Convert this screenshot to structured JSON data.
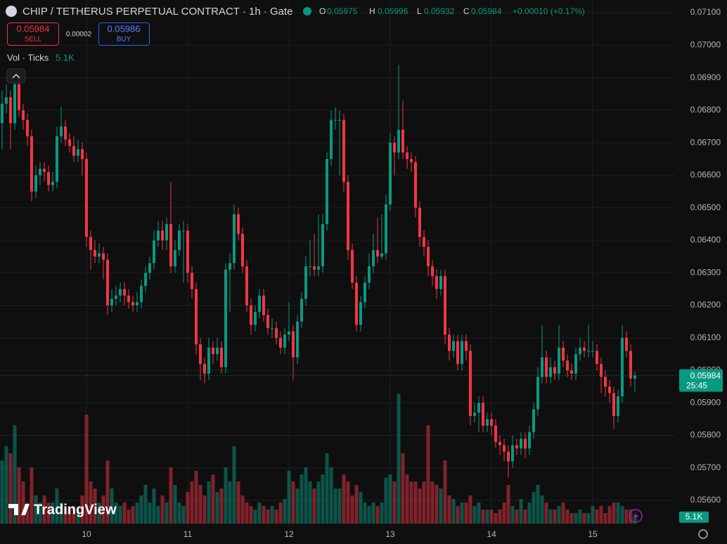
{
  "chart_data": {
    "type": "candlestick",
    "title": "CHIP / TETHERUS PERPETUAL CONTRACT · 1h · Gate",
    "ohlc_letters": [
      "O",
      "H",
      "L",
      "C"
    ],
    "change_label": "+0.00010 (+0.17%)",
    "sell_price": 0.05984,
    "sell_label": "SELL",
    "spread": 2e-05,
    "buy_price": 0.05986,
    "buy_label": "BUY",
    "volume_title": "Vol · Ticks",
    "volume_last_label": "5.1K",
    "countdown": "25:45",
    "logo": "TradingView",
    "up_color": "#089981",
    "down_color": "#f23645",
    "grid": true,
    "categories": [
      null,
      null,
      null,
      null,
      null,
      null,
      null,
      null,
      null,
      null,
      null,
      null,
      null,
      null,
      null,
      null,
      null,
      null,
      null,
      null,
      "10",
      null,
      null,
      null,
      null,
      null,
      null,
      null,
      null,
      null,
      null,
      null,
      null,
      null,
      null,
      null,
      null,
      null,
      null,
      null,
      null,
      null,
      null,
      null,
      "11",
      null,
      null,
      null,
      null,
      null,
      null,
      null,
      null,
      null,
      null,
      null,
      null,
      null,
      null,
      null,
      null,
      null,
      null,
      null,
      null,
      null,
      null,
      null,
      "12",
      null,
      null,
      null,
      null,
      null,
      null,
      null,
      null,
      null,
      null,
      null,
      null,
      null,
      null,
      null,
      null,
      null,
      null,
      null,
      null,
      null,
      null,
      null,
      "13",
      null,
      null,
      null,
      null,
      null,
      null,
      null,
      null,
      null,
      null,
      null,
      null,
      null,
      null,
      null,
      null,
      null,
      null,
      null,
      null,
      null,
      null,
      null,
      "14",
      null,
      null,
      null,
      null,
      null,
      null,
      null,
      null,
      null,
      null,
      null,
      null,
      null,
      null,
      null,
      null,
      null,
      null,
      null,
      null,
      null,
      null,
      null,
      "15",
      null,
      null,
      null,
      null,
      null,
      null,
      null,
      null,
      null,
      null
    ],
    "open": [
      0.0676,
      0.0682,
      0.0684,
      0.0676,
      0.0688,
      0.068,
      0.0677,
      0.0672,
      0.0655,
      0.066,
      0.0662,
      0.0661,
      0.0657,
      0.0658,
      0.0672,
      0.0675,
      0.0671,
      0.0669,
      0.0666,
      0.0668,
      0.0665,
      0.0641,
      0.0637,
      0.0635,
      0.0636,
      0.0634,
      0.062,
      0.0622,
      0.0623,
      0.0625,
      0.0623,
      0.0621,
      0.062,
      0.0621,
      0.0626,
      0.063,
      0.0633,
      0.064,
      0.0643,
      0.064,
      0.0645,
      0.0632,
      0.0637,
      0.0643,
      0.0643,
      0.063,
      0.0625,
      0.0608,
      0.0602,
      0.0599,
      0.0607,
      0.0605,
      0.0607,
      0.0601,
      0.0631,
      0.0633,
      0.0648,
      0.0642,
      0.0632,
      0.062,
      0.0614,
      0.0618,
      0.0623,
      0.0617,
      0.0613,
      0.0613,
      0.061,
      0.0607,
      0.0611,
      0.0612,
      0.0604,
      0.0615,
      0.0622,
      0.0632,
      0.0632,
      0.0631,
      0.0632,
      0.0645,
      0.0665,
      0.0677,
      0.0677,
      0.0677,
      0.0658,
      0.0637,
      0.0627,
      0.0614,
      0.0621,
      0.0627,
      0.0632,
      0.0637,
      0.0635,
      0.0636,
      0.0651,
      0.067,
      0.0667,
      0.0674,
      0.0667,
      0.0665,
      0.0664,
      0.065,
      0.0641,
      0.0638,
      0.0632,
      0.0629,
      0.0625,
      0.0629,
      0.0611,
      0.0606,
      0.0609,
      0.0602,
      0.0609,
      0.0606,
      0.0586,
      0.0587,
      0.059,
      0.0583,
      0.0585,
      0.0583,
      0.0578,
      0.0577,
      0.0575,
      0.0572,
      0.0577,
      0.0576,
      0.0579,
      0.0576,
      0.0581,
      0.0588,
      0.0598,
      0.0604,
      0.0598,
      0.0601,
      0.0599,
      0.0607,
      0.0603,
      0.06,
      0.0599,
      0.0605,
      0.0607,
      0.0606,
      0.0606,
      0.0606,
      0.0602,
      0.0598,
      0.0595,
      0.0593,
      0.0586,
      0.0592,
      0.061,
      0.0606,
      0.05975
    ],
    "high": [
      0.0686,
      0.0688,
      0.0686,
      0.0692,
      0.069,
      0.0682,
      0.0679,
      0.0674,
      0.0663,
      0.0664,
      0.0664,
      0.0663,
      0.0661,
      0.0675,
      0.0681,
      0.0677,
      0.0673,
      0.0672,
      0.0671,
      0.067,
      0.0667,
      0.0643,
      0.064,
      0.0639,
      0.0638,
      0.0636,
      0.0625,
      0.0626,
      0.0627,
      0.0627,
      0.0625,
      0.0623,
      0.0624,
      0.0628,
      0.0632,
      0.0635,
      0.0643,
      0.0646,
      0.0646,
      0.0647,
      0.0658,
      0.064,
      0.0645,
      0.0646,
      0.0645,
      0.0632,
      0.0627,
      0.061,
      0.0604,
      0.061,
      0.0609,
      0.061,
      0.0609,
      0.0633,
      0.0636,
      0.0651,
      0.065,
      0.0644,
      0.0634,
      0.0622,
      0.062,
      0.0625,
      0.0625,
      0.0619,
      0.0616,
      0.0615,
      0.0612,
      0.0613,
      0.0621,
      0.0614,
      0.0617,
      0.0624,
      0.0635,
      0.064,
      0.0642,
      0.0648,
      0.0648,
      0.0667,
      0.068,
      0.0681,
      0.068,
      0.0679,
      0.066,
      0.0639,
      0.0629,
      0.0623,
      0.0629,
      0.0636,
      0.0642,
      0.0647,
      0.0648,
      0.0654,
      0.0673,
      0.0672,
      0.0694,
      0.0683,
      0.0669,
      0.0667,
      0.0666,
      0.0652,
      0.0643,
      0.064,
      0.0634,
      0.0631,
      0.0631,
      0.0631,
      0.0613,
      0.0611,
      0.0611,
      0.0611,
      0.0611,
      0.0608,
      0.059,
      0.0592,
      0.0592,
      0.0587,
      0.0587,
      0.0585,
      0.058,
      0.0579,
      0.0577,
      0.058,
      0.0579,
      0.0581,
      0.0581,
      0.0583,
      0.059,
      0.0601,
      0.0614,
      0.0606,
      0.0604,
      0.0603,
      0.0614,
      0.0609,
      0.0605,
      0.0602,
      0.0607,
      0.061,
      0.0609,
      0.0614,
      0.0609,
      0.0608,
      0.0604,
      0.06,
      0.0597,
      0.0595,
      0.0594,
      0.0614,
      0.0612,
      0.0608,
      0.05996
    ],
    "low": [
      0.0668,
      0.0679,
      0.0668,
      0.0674,
      0.0678,
      0.0674,
      0.0669,
      0.0652,
      0.0653,
      0.0657,
      0.0658,
      0.0655,
      0.0655,
      0.0656,
      0.067,
      0.0669,
      0.0667,
      0.0664,
      0.0664,
      0.066,
      0.0638,
      0.0631,
      0.0633,
      0.0633,
      0.0628,
      0.0617,
      0.0618,
      0.062,
      0.0621,
      0.062,
      0.0619,
      0.0618,
      0.0618,
      0.0619,
      0.0624,
      0.0628,
      0.0631,
      0.0638,
      0.0637,
      0.0637,
      0.063,
      0.063,
      0.0635,
      0.0627,
      0.0627,
      0.0622,
      0.0605,
      0.0597,
      0.0596,
      0.0597,
      0.0602,
      0.0603,
      0.0599,
      0.0599,
      0.0618,
      0.0631,
      0.064,
      0.063,
      0.0618,
      0.0611,
      0.0612,
      0.0616,
      0.0615,
      0.0611,
      0.061,
      0.0608,
      0.0605,
      0.0605,
      0.0609,
      0.0597,
      0.0602,
      0.0613,
      0.062,
      0.0629,
      0.0629,
      0.0629,
      0.063,
      0.0643,
      0.0663,
      0.0674,
      0.066,
      0.0655,
      0.0634,
      0.0625,
      0.0612,
      0.0612,
      0.0619,
      0.0625,
      0.063,
      0.0633,
      0.0634,
      0.0634,
      0.0649,
      0.066,
      0.0665,
      0.0665,
      0.0662,
      0.0661,
      0.0647,
      0.0638,
      0.0635,
      0.0629,
      0.0626,
      0.0622,
      0.0623,
      0.0608,
      0.0603,
      0.0604,
      0.06,
      0.06,
      0.0603,
      0.0583,
      0.0584,
      0.0581,
      0.0581,
      0.0581,
      0.058,
      0.0576,
      0.0574,
      0.0572,
      0.0567,
      0.057,
      0.0574,
      0.0574,
      0.0573,
      0.0574,
      0.0579,
      0.0586,
      0.0596,
      0.0596,
      0.0596,
      0.0597,
      0.0597,
      0.0601,
      0.0598,
      0.0597,
      0.0597,
      0.0603,
      0.0604,
      0.0604,
      0.0604,
      0.06,
      0.0593,
      0.0592,
      0.059,
      0.0582,
      0.0584,
      0.059,
      0.0604,
      0.0595,
      0.05932
    ],
    "close": [
      0.0682,
      0.0684,
      0.0676,
      0.0688,
      0.068,
      0.0677,
      0.0672,
      0.0655,
      0.066,
      0.0662,
      0.0661,
      0.0657,
      0.0658,
      0.0672,
      0.0675,
      0.0671,
      0.0669,
      0.0666,
      0.0668,
      0.0665,
      0.0641,
      0.0637,
      0.0635,
      0.0636,
      0.0634,
      0.062,
      0.0622,
      0.0623,
      0.0625,
      0.0623,
      0.0621,
      0.062,
      0.0621,
      0.0626,
      0.063,
      0.0633,
      0.064,
      0.0643,
      0.064,
      0.0645,
      0.0632,
      0.0637,
      0.0643,
      0.0643,
      0.063,
      0.0625,
      0.0608,
      0.0602,
      0.0599,
      0.0607,
      0.0605,
      0.0607,
      0.0601,
      0.0631,
      0.0633,
      0.0648,
      0.0642,
      0.0632,
      0.062,
      0.0614,
      0.0618,
      0.0623,
      0.0617,
      0.0613,
      0.0613,
      0.061,
      0.0607,
      0.0611,
      0.0612,
      0.0604,
      0.0615,
      0.0622,
      0.0632,
      0.0632,
      0.0631,
      0.0632,
      0.0645,
      0.0665,
      0.0677,
      0.0677,
      0.0677,
      0.0658,
      0.0637,
      0.0627,
      0.0614,
      0.0621,
      0.0627,
      0.0632,
      0.0637,
      0.0635,
      0.0636,
      0.0651,
      0.067,
      0.0667,
      0.0674,
      0.0667,
      0.0665,
      0.0664,
      0.065,
      0.0641,
      0.0638,
      0.0632,
      0.0629,
      0.0625,
      0.0629,
      0.0611,
      0.0606,
      0.0609,
      0.0602,
      0.0609,
      0.0606,
      0.0586,
      0.0587,
      0.059,
      0.0583,
      0.0585,
      0.0583,
      0.0578,
      0.0577,
      0.0575,
      0.0572,
      0.0577,
      0.0576,
      0.0579,
      0.0576,
      0.0581,
      0.0588,
      0.0598,
      0.0604,
      0.0598,
      0.0601,
      0.0599,
      0.0607,
      0.0603,
      0.06,
      0.0599,
      0.0605,
      0.0607,
      0.0606,
      0.0606,
      0.0606,
      0.0602,
      0.0598,
      0.0595,
      0.0593,
      0.0586,
      0.0592,
      0.061,
      0.0606,
      0.05975,
      0.05984
    ],
    "volume": [
      45000,
      55000,
      50000,
      70000,
      40000,
      30000,
      15000,
      40000,
      20000,
      15000,
      20000,
      15000,
      15000,
      25000,
      15000,
      12500,
      10000,
      12500,
      10000,
      20000,
      77500,
      30000,
      25000,
      15000,
      20000,
      45000,
      25000,
      15000,
      12500,
      15000,
      10000,
      12500,
      15000,
      20000,
      27500,
      15000,
      25000,
      12500,
      20000,
      15000,
      40000,
      27500,
      15000,
      12500,
      22500,
      30000,
      37500,
      27500,
      20000,
      30000,
      35000,
      22500,
      25000,
      40000,
      30000,
      55000,
      30000,
      20000,
      15000,
      12500,
      10000,
      15000,
      12500,
      10000,
      12500,
      10000,
      15000,
      17500,
      37500,
      30000,
      25000,
      35000,
      40000,
      30000,
      25000,
      30000,
      35000,
      50000,
      40000,
      25000,
      25000,
      35000,
      30000,
      20000,
      27500,
      22500,
      15000,
      12500,
      15000,
      12500,
      15000,
      32500,
      35000,
      30000,
      92500,
      50000,
      35000,
      30000,
      30000,
      25000,
      30000,
      70000,
      30000,
      27500,
      25000,
      45000,
      20000,
      17500,
      12500,
      15000,
      15000,
      20000,
      12500,
      15000,
      10000,
      10000,
      10000,
      7500,
      10000,
      15000,
      27500,
      12500,
      10000,
      17500,
      10000,
      15000,
      22500,
      27500,
      20000,
      15000,
      10000,
      10000,
      12500,
      15000,
      10000,
      7500,
      7500,
      10000,
      7500,
      7500,
      12500,
      10000,
      12500,
      7500,
      12500,
      15000,
      15000,
      12500,
      10000,
      10000,
      5100
    ],
    "ylim": [
      0.05518,
      0.07139
    ],
    "yticks": [
      {
        "value": 0.056,
        "label": "0.05600"
      },
      {
        "value": 0.057,
        "label": "0.05700"
      },
      {
        "value": 0.058,
        "label": "0.05800"
      },
      {
        "value": 0.059,
        "label": "0.05900"
      },
      {
        "value": 0.06,
        "label": "0.06000"
      },
      {
        "value": 0.061,
        "label": "0.06100"
      },
      {
        "value": 0.062,
        "label": "0.06200"
      },
      {
        "value": 0.063,
        "label": "0.06300"
      },
      {
        "value": 0.064,
        "label": "0.06400"
      },
      {
        "value": 0.065,
        "label": "0.06500"
      },
      {
        "value": 0.066,
        "label": "0.06600"
      },
      {
        "value": 0.067,
        "label": "0.06700"
      },
      {
        "value": 0.068,
        "label": "0.06800"
      },
      {
        "value": 0.069,
        "label": "0.06900"
      },
      {
        "value": 0.07,
        "label": "0.07000"
      },
      {
        "value": 0.071,
        "label": "0.07100"
      }
    ]
  }
}
